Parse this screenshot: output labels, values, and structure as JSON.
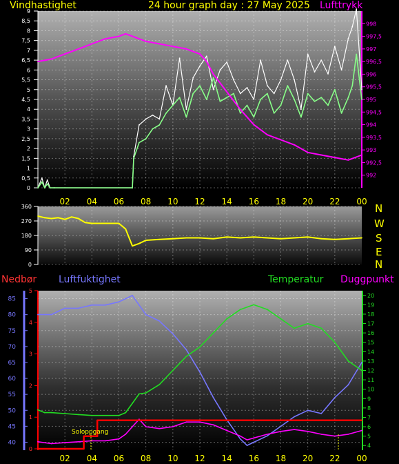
{
  "header": {
    "left_label": "Vindhastighet",
    "center_title": "24 hour graph day : 27 May 2025",
    "right_label": "Lufttrykk"
  },
  "wind_dir_compass": [
    "N",
    "W",
    "S",
    "E",
    "N"
  ],
  "bottom_labels": {
    "rain": "Nedbør",
    "humidity": "Luftfuktighet",
    "temperature": "Temperatur",
    "dewpoint": "Duggpunkt"
  },
  "sunrise_label": "Soloppgang",
  "colors": {
    "wind_speed": "#88ff88",
    "wind_gust": "#ffffff",
    "pressure": "#ff00ff",
    "wind_dir": "#ffff00",
    "humidity": "#7777ff",
    "temperature": "#22dd22",
    "dewpoint": "#ff00ff",
    "rain": "#ff0000",
    "axis_text": "#ffff00"
  },
  "chart_data": [
    {
      "type": "line",
      "title": "24 hour graph day : 27 May 2025",
      "x_ticks": [
        "02",
        "04",
        "06",
        "08",
        "10",
        "12",
        "14",
        "16",
        "18",
        "20",
        "22",
        "00"
      ],
      "xlim": [
        0,
        24
      ],
      "ylabel": "Vindhastighet",
      "y2label": "Lufttrykk",
      "ylim": [
        0,
        9
      ],
      "y_ticks": [
        "0",
        "0,5",
        "1",
        "1,5",
        "2",
        "2,5",
        "3",
        "3,5",
        "4",
        "4,5",
        "5",
        "5,5",
        "6",
        "6,5",
        "7",
        "7,5",
        "8",
        "8,5",
        "9"
      ],
      "y2lim": [
        991.5,
        998.5
      ],
      "y2_ticks": [
        "992",
        "992,5",
        "993",
        "993,5",
        "994",
        "994,5",
        "995",
        "995,5",
        "996",
        "996,5",
        "997",
        "997,5",
        "998"
      ],
      "series": [
        {
          "name": "Vindhastighet",
          "x": [
            0,
            0.3,
            0.5,
            0.7,
            0.9,
            1.2,
            7,
            7.1,
            7.5,
            8,
            8.5,
            9,
            9.5,
            10,
            10.5,
            11,
            11.5,
            12,
            12.5,
            13,
            13.5,
            14,
            14.5,
            15,
            15.5,
            16,
            16.5,
            17,
            17.5,
            18,
            18.5,
            19,
            19.5,
            20,
            20.5,
            21,
            21.5,
            22,
            22.5,
            23,
            23.3,
            23.6,
            24
          ],
          "y": [
            0,
            0.3,
            0,
            0.2,
            0,
            0,
            0,
            1.5,
            2.3,
            2.5,
            3,
            3.2,
            3.8,
            4.2,
            4.6,
            3.6,
            4.8,
            5.2,
            4.5,
            5.6,
            4.4,
            4.6,
            4.8,
            3.8,
            4.2,
            3.6,
            4.5,
            4.8,
            3.8,
            4.2,
            5.2,
            4.5,
            3.6,
            4.8,
            4.4,
            4.6,
            4.2,
            5,
            3.8,
            4.6,
            5.2,
            6.8,
            4.5
          ]
        },
        {
          "name": "Vindkast",
          "x": [
            0,
            0.3,
            0.5,
            0.7,
            0.9,
            1.2,
            7,
            7.1,
            7.5,
            8,
            8.5,
            9,
            9.5,
            10,
            10.5,
            11,
            11.5,
            12,
            12.5,
            13,
            13.5,
            14,
            14.5,
            15,
            15.5,
            16,
            16.5,
            17,
            17.5,
            18,
            18.5,
            19,
            19.5,
            20,
            20.5,
            21,
            21.5,
            22,
            22.5,
            23,
            23.3,
            23.6,
            24
          ],
          "y": [
            0,
            0.5,
            0,
            0.4,
            0,
            0,
            0,
            1.6,
            3.2,
            3.5,
            3.7,
            3.5,
            5.2,
            4.2,
            6.6,
            4,
            5.6,
            6.2,
            6.7,
            5,
            6,
            6.4,
            5.5,
            4.8,
            5.1,
            4.5,
            6.5,
            5.2,
            4.8,
            5.5,
            6.5,
            5.5,
            4,
            6.8,
            5.9,
            6.5,
            5.8,
            7.2,
            6,
            7.6,
            8.2,
            9.1,
            5
          ]
        },
        {
          "name": "Lufttrykk",
          "x": [
            0,
            1,
            2,
            3,
            4,
            5,
            6,
            6.5,
            7,
            7.5,
            8,
            9,
            10,
            11,
            12,
            12.5,
            13,
            14,
            15,
            16,
            17,
            18,
            19,
            20,
            21,
            22,
            23,
            24
          ],
          "y": [
            996.5,
            996.6,
            996.8,
            997,
            997.2,
            997.4,
            997.5,
            997.6,
            997.5,
            997.4,
            997.3,
            997.2,
            997.1,
            997,
            996.8,
            996.5,
            996,
            995.3,
            994.6,
            994,
            993.6,
            993.4,
            993.2,
            992.9,
            992.8,
            992.7,
            992.6,
            992.8
          ]
        }
      ]
    },
    {
      "type": "line",
      "title": "",
      "x_ticks": [
        "02",
        "04",
        "06",
        "08",
        "10",
        "12",
        "14",
        "16",
        "18",
        "20",
        "22",
        "00"
      ],
      "xlim": [
        0,
        24
      ],
      "ylim": [
        0,
        360
      ],
      "y_ticks": [
        "0",
        "90",
        "180",
        "270",
        "360"
      ],
      "series": [
        {
          "name": "Vindretning",
          "x": [
            0,
            0.5,
            1,
            1.5,
            2,
            2.5,
            3,
            3.5,
            4,
            4.5,
            5,
            5.5,
            6,
            6.5,
            7,
            7.5,
            8,
            9,
            10,
            11,
            12,
            13,
            14,
            15,
            16,
            17,
            18,
            19,
            20,
            21,
            22,
            23,
            24
          ],
          "y": [
            300,
            290,
            285,
            290,
            280,
            295,
            285,
            260,
            255,
            255,
            255,
            255,
            255,
            220,
            115,
            130,
            150,
            155,
            160,
            165,
            165,
            160,
            170,
            165,
            170,
            165,
            160,
            165,
            170,
            160,
            155,
            160,
            165
          ]
        }
      ]
    },
    {
      "type": "line",
      "title": "",
      "x_ticks": [
        "02",
        "04",
        "06",
        "08",
        "10",
        "12",
        "14",
        "16",
        "18",
        "20",
        "22",
        "00"
      ],
      "xlim": [
        0,
        24
      ],
      "ylabel": "Luftfuktighet",
      "ylim": [
        37.5,
        87.5
      ],
      "y_ticks": [
        "40",
        "45",
        "50",
        "55",
        "60",
        "65",
        "70",
        "75",
        "80",
        "85"
      ],
      "y_rain_ticks": [
        "0",
        "1",
        "2",
        "3",
        "4",
        "5"
      ],
      "y2label": "Temperatur",
      "y2lim": [
        3.5,
        20.5
      ],
      "y2_ticks": [
        "4",
        "5",
        "6",
        "7",
        "8",
        "9",
        "10",
        "11",
        "12",
        "13",
        "14",
        "15",
        "16",
        "17",
        "18",
        "19",
        "20"
      ],
      "series": [
        {
          "name": "Luftfuktighet",
          "x": [
            0,
            1,
            2,
            3,
            4,
            5,
            6,
            6.5,
            7,
            7.5,
            8,
            9,
            10,
            11,
            12,
            13,
            14,
            15,
            15.5,
            16,
            17,
            18,
            19,
            20,
            21,
            22,
            23,
            24
          ],
          "y": [
            80,
            80,
            82,
            82,
            83,
            83,
            84,
            85,
            86,
            83,
            80,
            78,
            74,
            69,
            62,
            54,
            47,
            41,
            39,
            40,
            42,
            45,
            48,
            50,
            49,
            54,
            58,
            65
          ]
        },
        {
          "name": "Temperatur",
          "x": [
            0,
            0.5,
            1,
            2,
            3,
            4,
            5,
            6,
            6.5,
            7,
            7.5,
            8,
            9,
            10,
            11,
            12,
            13,
            14,
            15,
            16,
            17,
            18,
            19,
            20,
            21,
            22,
            23,
            24
          ],
          "y": [
            7.8,
            7.5,
            7.5,
            7.4,
            7.3,
            7.2,
            7.2,
            7.2,
            7.5,
            8.5,
            9.5,
            9.6,
            10.5,
            12,
            13.5,
            14.5,
            16,
            17.5,
            18.5,
            19,
            18.5,
            17.5,
            16.5,
            17,
            16.5,
            15,
            13,
            12
          ]
        },
        {
          "name": "Duggpunkt",
          "x": [
            0,
            1,
            2,
            3,
            4,
            5,
            6,
            6.5,
            7,
            7.5,
            8,
            9,
            10,
            11,
            12,
            13,
            14,
            15,
            15.5,
            16,
            17,
            18,
            19,
            20,
            21,
            22,
            23,
            24
          ],
          "y": [
            4.4,
            4.2,
            4.3,
            4.4,
            4.5,
            4.5,
            4.7,
            5.2,
            6,
            6.8,
            6,
            5.8,
            6,
            6.5,
            6.5,
            6.2,
            5.6,
            5,
            4.6,
            4.8,
            5.2,
            5.5,
            5.7,
            5.5,
            5.2,
            5,
            5.2,
            5.6
          ]
        },
        {
          "name": "Nedbør",
          "x": [
            0,
            3.4,
            3.4,
            4.4,
            4.4,
            24
          ],
          "y": [
            0,
            0,
            0.4,
            0.4,
            0.9,
            0.9
          ]
        }
      ]
    }
  ]
}
